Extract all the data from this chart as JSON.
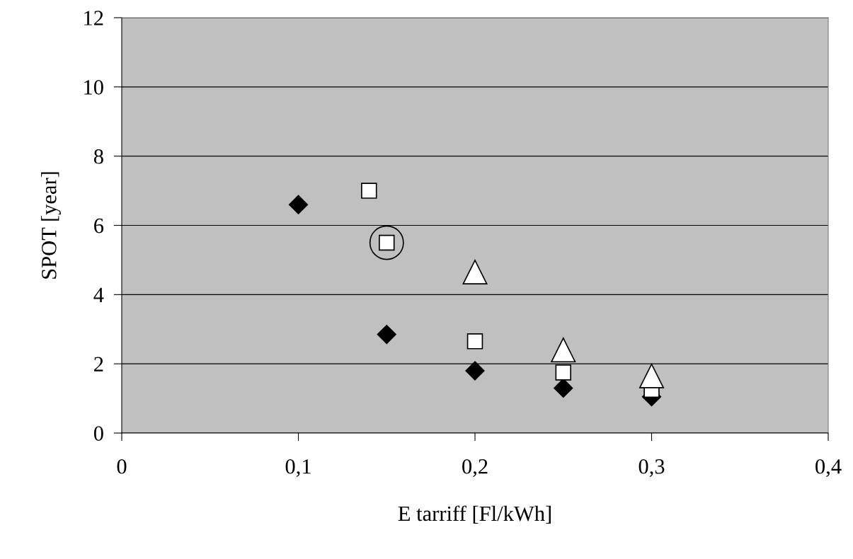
{
  "chart_data": {
    "type": "scatter",
    "xlabel": "E tarriff [Fl/kWh]",
    "ylabel": "SPOT [year]",
    "xlim": [
      0,
      0.4
    ],
    "ylim": [
      0,
      12
    ],
    "xticks": [
      0,
      {
        "value": 0.1,
        "label": "0,1"
      },
      {
        "value": 0.2,
        "label": "0,2"
      },
      {
        "value": 0.3,
        "label": "0,3"
      },
      {
        "value": 0.4,
        "label": "0,4"
      }
    ],
    "yticks": [
      0,
      2,
      4,
      6,
      8,
      10,
      12
    ],
    "grid": "y",
    "series": [
      {
        "color": "#000000",
        "marker": "diamond",
        "x": [
          0.1,
          0.15,
          0.2,
          0.25,
          0.3
        ],
        "values": [
          6.6,
          2.85,
          1.8,
          1.3,
          1.05
        ]
      },
      {
        "color": "#ffffff",
        "marker": "square",
        "x": [
          0.14,
          0.15,
          0.2,
          0.25,
          0.3
        ],
        "values": [
          7.0,
          5.5,
          2.65,
          1.75,
          1.25
        ]
      },
      {
        "color": "#ffffff",
        "marker": "triangle",
        "x": [
          0.2,
          0.25,
          0.3
        ],
        "values": [
          4.65,
          2.4,
          1.65
        ]
      },
      {
        "color": "none",
        "marker": "circle",
        "x": [
          0.15
        ],
        "values": [
          5.5
        ]
      }
    ]
  }
}
